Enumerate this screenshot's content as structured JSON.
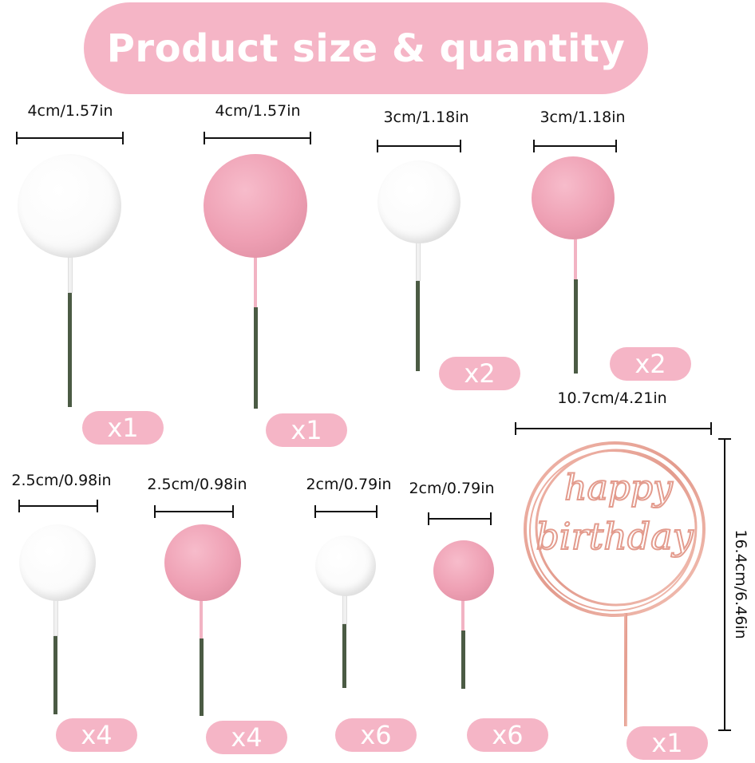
{
  "header": {
    "title": "Product size & quantity"
  },
  "colors": {
    "badge": "#f5b5c6",
    "pink_ball": "#ee9fb3",
    "white_ball": "#fbfbfb",
    "stick": "#4b5b44",
    "rose_gold": "#e8a598"
  },
  "items": [
    {
      "size": "4cm/1.57in",
      "color": "white",
      "quantity": "x1"
    },
    {
      "size": "4cm/1.57in",
      "color": "pink",
      "quantity": "x1"
    },
    {
      "size": "3cm/1.18in",
      "color": "white",
      "quantity": "x2"
    },
    {
      "size": "3cm/1.18in",
      "color": "pink",
      "quantity": "x2"
    },
    {
      "size": "2.5cm/0.98in",
      "color": "white",
      "quantity": "x4"
    },
    {
      "size": "2.5cm/0.98in",
      "color": "pink",
      "quantity": "x4"
    },
    {
      "size": "2cm/0.79in",
      "color": "white",
      "quantity": "x6"
    },
    {
      "size": "2cm/0.79in",
      "color": "pink",
      "quantity": "x6"
    }
  ],
  "topper": {
    "text_line1": "happy",
    "text_line2": "birthday",
    "width": "10.7cm/4.21in",
    "height": "16.4cm/6.46in",
    "quantity": "x1"
  }
}
